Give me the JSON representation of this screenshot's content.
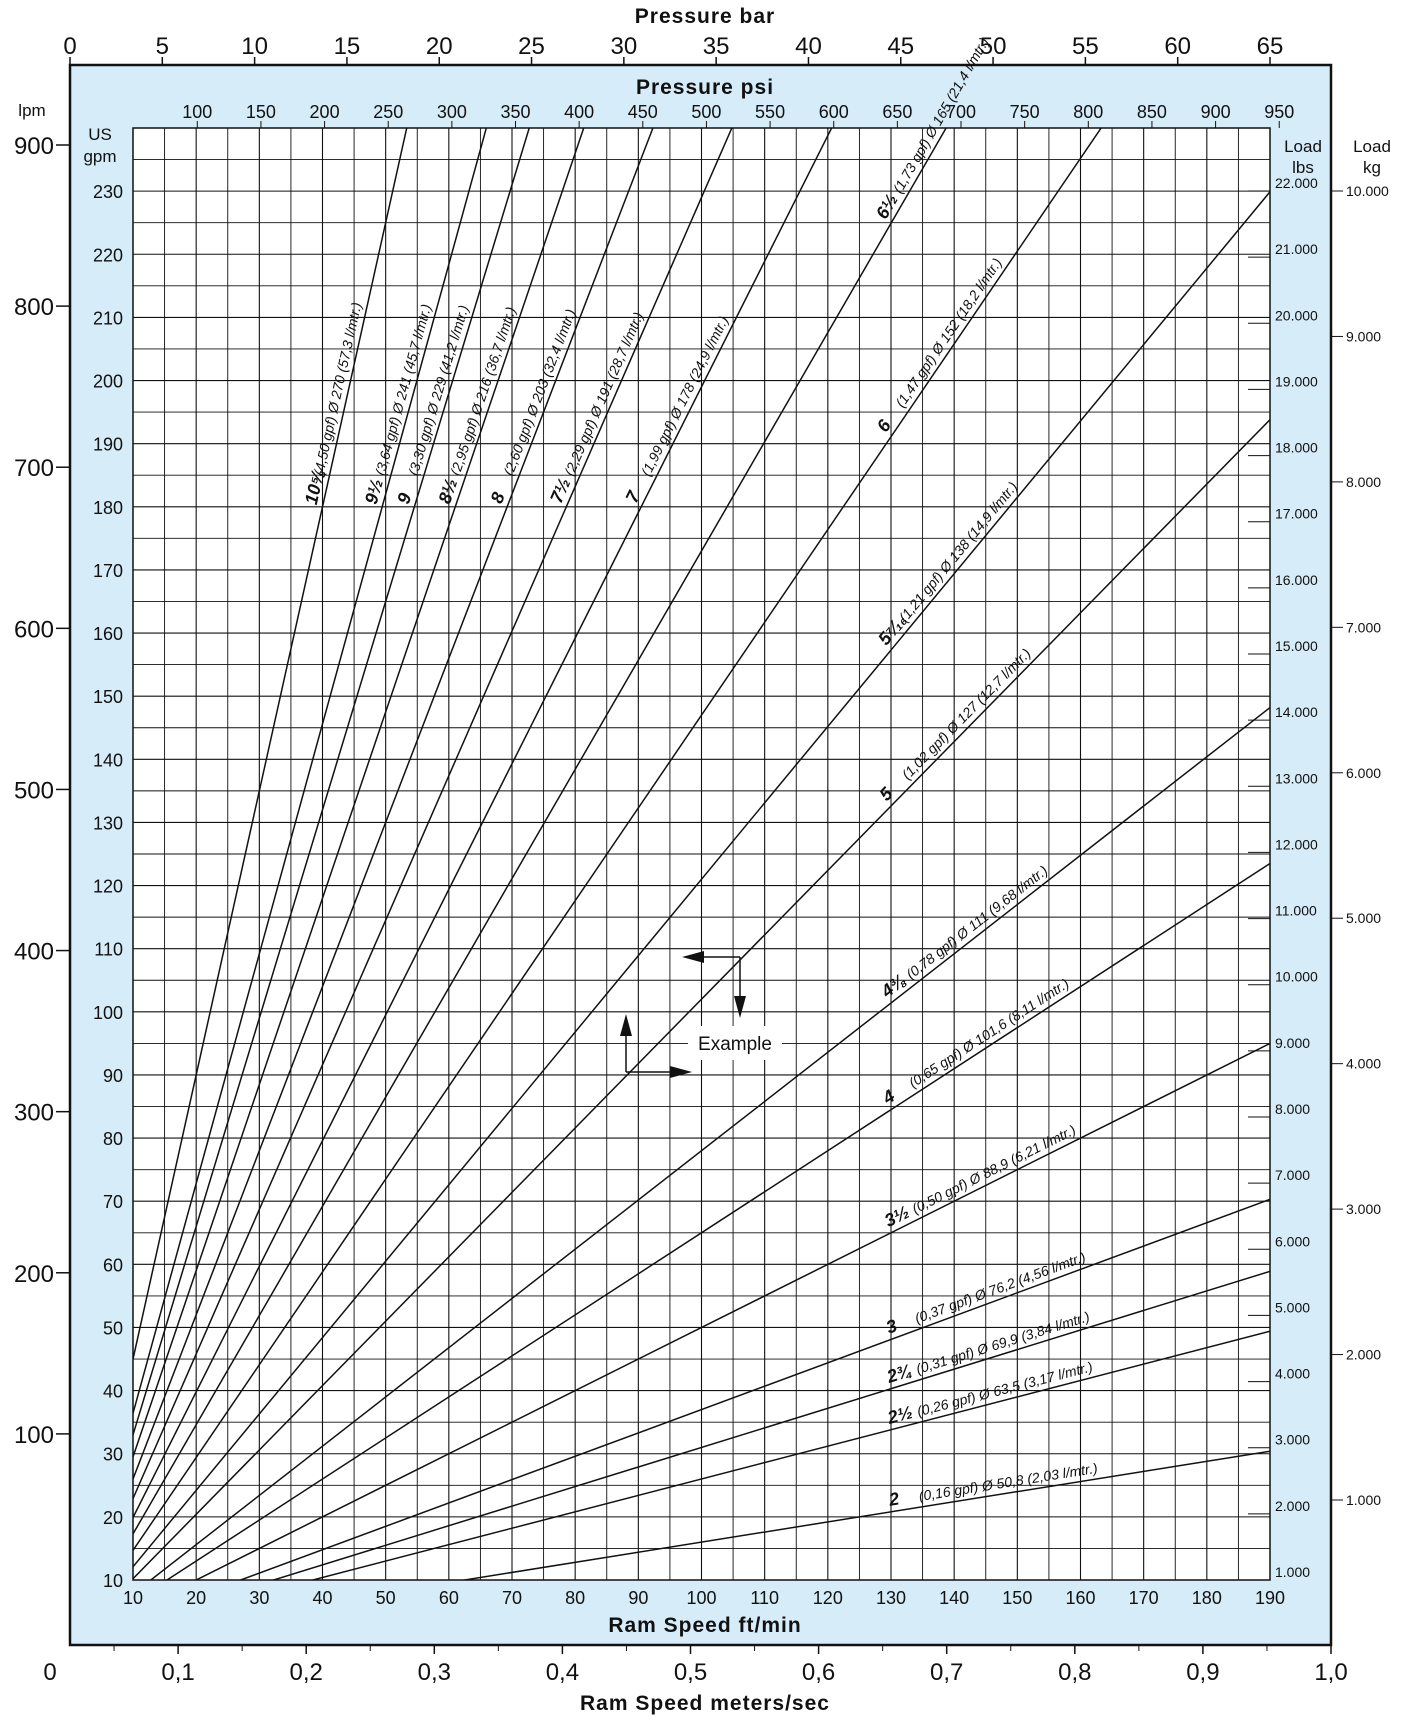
{
  "chart_data": {
    "type": "line",
    "titles": {
      "top_axis": "Pressure bar",
      "inner_top_axis": "Pressure psi",
      "bottom_inner_axis": "Ram Speed ft/min",
      "bottom_outer_axis": "Ram Speed meters/sec",
      "left_outer_unit": "lpm",
      "left_inner_unit_1": "US",
      "left_inner_unit_2": "gpm",
      "right_inner_unit_1": "Load",
      "right_inner_unit_2": "lbs",
      "right_outer_unit_1": "Load",
      "right_outer_unit_2": "kg"
    },
    "axes": {
      "bar_ticks": [
        "0",
        "5",
        "10",
        "15",
        "20",
        "25",
        "30",
        "35",
        "40",
        "45",
        "50",
        "55",
        "60",
        "65"
      ],
      "bar_range": [
        0,
        65
      ],
      "psi_ticks": [
        "100",
        "150",
        "200",
        "250",
        "300",
        "350",
        "400",
        "450",
        "500",
        "550",
        "600",
        "650",
        "700",
        "750",
        "800",
        "850",
        "900",
        "950"
      ],
      "lpm_ticks": [
        "100",
        "200",
        "300",
        "400",
        "500",
        "600",
        "700",
        "800",
        "900"
      ],
      "gpm_ticks": [
        "10",
        "20",
        "30",
        "40",
        "50",
        "60",
        "70",
        "80",
        "90",
        "100",
        "110",
        "120",
        "130",
        "140",
        "150",
        "160",
        "170",
        "180",
        "190",
        "200",
        "210",
        "220",
        "230"
      ],
      "gpm_range": [
        10,
        240
      ],
      "ftmin_ticks": [
        "10",
        "20",
        "30",
        "40",
        "50",
        "60",
        "70",
        "80",
        "90",
        "100",
        "110",
        "120",
        "130",
        "140",
        "150",
        "160",
        "170",
        "180",
        "190"
      ],
      "ftmin_range": [
        10,
        190
      ],
      "ms_ticks": [
        "0",
        "0,1",
        "0,2",
        "0,3",
        "0,4",
        "0,5",
        "0,6",
        "0,7",
        "0,8",
        "0,9",
        "1,0"
      ],
      "ms_range": [
        0,
        1.0
      ],
      "lbs_ticks": [
        "1.000",
        "2.000",
        "3.000",
        "4.000",
        "5.000",
        "6.000",
        "7.000",
        "8.000",
        "9.000",
        "10.000",
        "11.000",
        "12.000",
        "13.000",
        "14.000",
        "15.000",
        "16.000",
        "17.000",
        "18.000",
        "19.000",
        "20.000",
        "21.000",
        "22.000"
      ],
      "kg_ticks": [
        "1.000",
        "2.000",
        "3.000",
        "4.000",
        "5.000",
        "6.000",
        "7.000",
        "8.000",
        "9.000",
        "10.000"
      ]
    },
    "series": [
      {
        "label_size": "2",
        "label_text": "(0,16 gpf)   Ø 50,8   (2,03 l/mtr.)",
        "gpf": 0.16
      },
      {
        "label_size": "2½",
        "label_text": "(0,26 gpf)   Ø 63,5   (3,17 l/mtr.)",
        "gpf": 0.26
      },
      {
        "label_size": "2¾",
        "label_text": "(0,31 gpf)   Ø 69,9   (3,84 l/mtr.)",
        "gpf": 0.31
      },
      {
        "label_size": "3",
        "label_text": "(0,37 gpf)   Ø 76,2   (4,56 l/mtr.)",
        "gpf": 0.37
      },
      {
        "label_size": "3½",
        "label_text": "(0,50 gpf)   Ø 88,9   (6,21 l/mtr.)",
        "gpf": 0.5
      },
      {
        "label_size": "4",
        "label_text": "(0,65 gpf)   Ø 101,6   (8,11 l/mtr.)",
        "gpf": 0.65
      },
      {
        "label_size": "4⅜",
        "label_text": "(0,78 gpf)   Ø 111   (9,68 l/mtr.)",
        "gpf": 0.78
      },
      {
        "label_size": "5",
        "label_text": "(1,02 gpf)   Ø 127   (12,7 l/mtr.)",
        "gpf": 1.02
      },
      {
        "label_size": "5⁷⁄₁₆",
        "label_text": "(1,21 gpf)   Ø 138   (14,9 l/mtr.)",
        "gpf": 1.21
      },
      {
        "label_size": "6",
        "label_text": "(1,47 gpf)   Ø 152   (18,2 l/mtr.)",
        "gpf": 1.47
      },
      {
        "label_size": "6½",
        "label_text": "(1,73 gpf)   Ø 165   (21,4 l/mtr.)",
        "gpf": 1.73
      },
      {
        "label_size": "7",
        "label_text": "(1,99 gpf)   Ø 178   (24,9 l/mtr.)",
        "gpf": 1.99
      },
      {
        "label_size": "7½",
        "label_text": "(2,29 gpf)   Ø 191   (28,7 l/mtr.)",
        "gpf": 2.29
      },
      {
        "label_size": "8",
        "label_text": "(2,60 gpf)   Ø 203   (32,4 l/mtr.)",
        "gpf": 2.6
      },
      {
        "label_size": "8½",
        "label_text": "(2,95 gpf)   Ø 216   (36,7 l/mtr.)",
        "gpf": 2.95
      },
      {
        "label_size": "9",
        "label_text": "(3,30 gpf)   Ø 229   (41,2 l/mtr.)",
        "gpf": 3.3
      },
      {
        "label_size": "9½",
        "label_text": "(3,64 gpf)   Ø 241   (45,7 l/mtr.)",
        "gpf": 3.64
      },
      {
        "label_size": "10⅝",
        "label_text": "(4,50 gpf)   Ø 270   (57,3 l/mtr.)",
        "gpf": 4.5
      }
    ],
    "annotation": "Example",
    "colors": {
      "frame_bg": "#d6ecf8",
      "plot_bg": "#ffffff",
      "line": "#111111"
    },
    "grid": true
  }
}
